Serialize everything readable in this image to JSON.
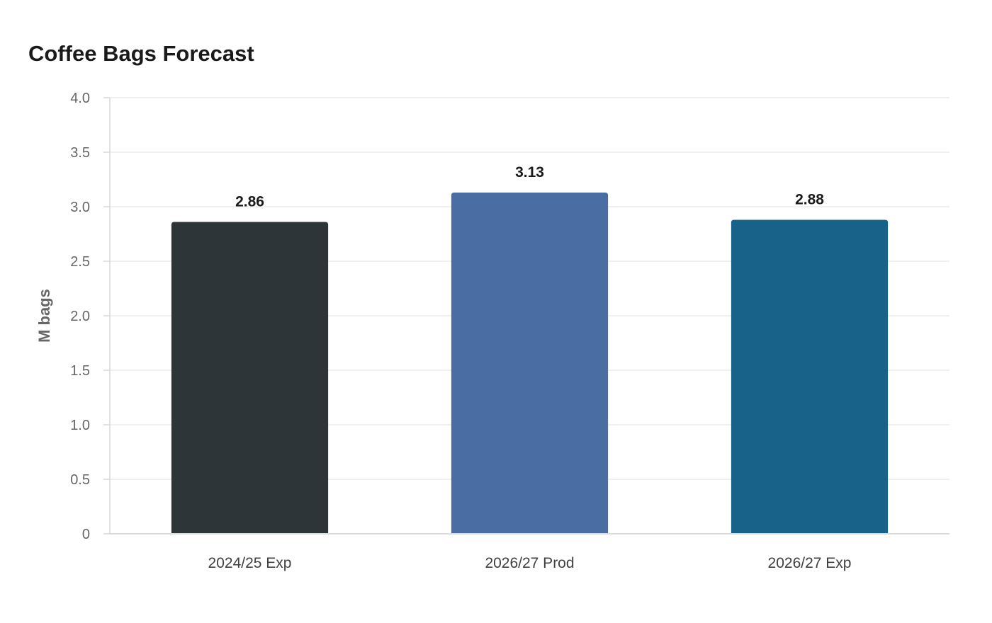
{
  "chart_data": {
    "type": "bar",
    "title": "Coffee Bags Forecast",
    "xlabel": "",
    "ylabel": "M bags",
    "ylim": [
      0,
      4.0
    ],
    "yticks": [
      "0",
      "0.5",
      "1.0",
      "1.5",
      "2.0",
      "2.5",
      "3.0",
      "3.5",
      "4.0"
    ],
    "categories": [
      "2024/25 Exp",
      "2026/27 Prod",
      "2026/27 Exp"
    ],
    "values": [
      2.86,
      3.13,
      2.88
    ],
    "value_labels": [
      "2.86",
      "3.13",
      "2.88"
    ],
    "bar_colors": [
      "#2e3538",
      "#4a6ea3",
      "#186189"
    ],
    "grid": true,
    "legend": "none"
  }
}
